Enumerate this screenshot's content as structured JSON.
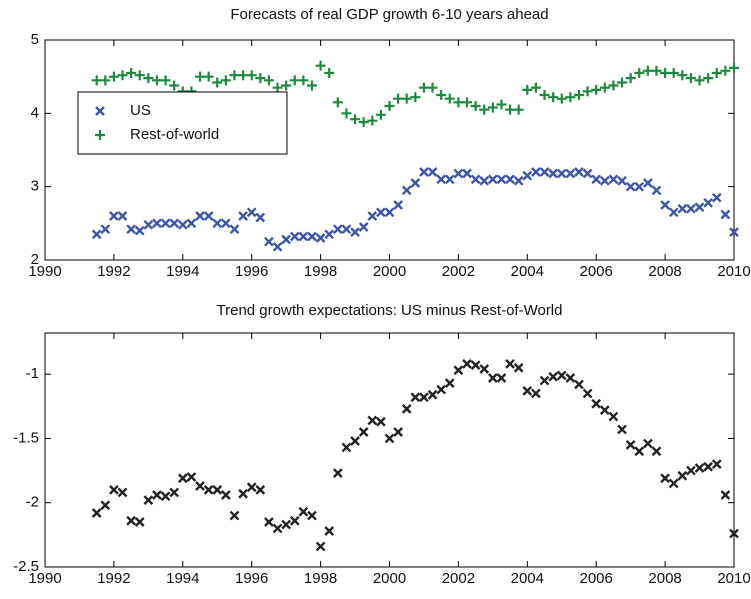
{
  "chart_data": [
    {
      "type": "scatter",
      "title": "Forecasts of real GDP growth 6-10 years ahead",
      "x": [
        1991.5,
        1991.75,
        1992,
        1992.25,
        1992.5,
        1992.75,
        1993,
        1993.25,
        1993.5,
        1993.75,
        1994,
        1994.25,
        1994.5,
        1994.75,
        1995,
        1995.25,
        1995.5,
        1995.75,
        1996,
        1996.25,
        1996.5,
        1996.75,
        1997,
        1997.25,
        1997.5,
        1997.75,
        1998,
        1998.25,
        1998.5,
        1998.75,
        1999,
        1999.25,
        1999.5,
        1999.75,
        2000,
        2000.25,
        2000.5,
        2000.75,
        2001,
        2001.25,
        2001.5,
        2001.75,
        2002,
        2002.25,
        2002.5,
        2002.75,
        2003,
        2003.25,
        2003.5,
        2003.75,
        2004,
        2004.25,
        2004.5,
        2004.75,
        2005,
        2005.25,
        2005.5,
        2005.75,
        2006,
        2006.25,
        2006.5,
        2006.75,
        2007,
        2007.25,
        2007.5,
        2007.75,
        2008,
        2008.25,
        2008.5,
        2008.75,
        2009,
        2009.25,
        2009.5,
        2009.75,
        2010
      ],
      "series": [
        {
          "name": "US",
          "color": "#3b56a8",
          "marker": "x",
          "values": [
            2.35,
            2.42,
            2.6,
            2.6,
            2.42,
            2.4,
            2.48,
            2.5,
            2.5,
            2.5,
            2.48,
            2.5,
            2.6,
            2.6,
            2.5,
            2.5,
            2.42,
            2.6,
            2.65,
            2.58,
            2.25,
            2.18,
            2.28,
            2.32,
            2.32,
            2.32,
            2.3,
            2.35,
            2.42,
            2.42,
            2.38,
            2.45,
            2.6,
            2.65,
            2.65,
            2.75,
            2.95,
            3.05,
            3.2,
            3.2,
            3.1,
            3.1,
            3.18,
            3.18,
            3.1,
            3.08,
            3.1,
            3.1,
            3.1,
            3.08,
            3.15,
            3.2,
            3.2,
            3.18,
            3.18,
            3.18,
            3.2,
            3.18,
            3.1,
            3.08,
            3.1,
            3.08,
            3.0,
            3.0,
            3.05,
            2.95,
            2.75,
            2.65,
            2.7,
            2.7,
            2.72,
            2.78,
            2.85,
            2.62,
            2.38
          ]
        },
        {
          "name": "Rest-of-world",
          "color": "#1c8a3d",
          "marker": "+",
          "values": [
            4.45,
            4.45,
            4.5,
            4.52,
            4.55,
            4.52,
            4.48,
            4.45,
            4.45,
            4.38,
            4.3,
            4.3,
            4.5,
            4.5,
            4.42,
            4.45,
            4.52,
            4.52,
            4.52,
            4.48,
            4.45,
            4.35,
            4.38,
            4.45,
            4.45,
            4.38,
            4.65,
            4.55,
            4.15,
            4.0,
            3.92,
            3.88,
            3.9,
            3.98,
            4.1,
            4.2,
            4.2,
            4.22,
            4.35,
            4.35,
            4.25,
            4.2,
            4.15,
            4.15,
            4.1,
            4.05,
            4.08,
            4.12,
            4.05,
            4.05,
            4.32,
            4.35,
            4.25,
            4.22,
            4.2,
            4.22,
            4.25,
            4.3,
            4.32,
            4.35,
            4.38,
            4.42,
            4.48,
            4.55,
            4.58,
            4.58,
            4.55,
            4.55,
            4.52,
            4.48,
            4.45,
            4.48,
            4.55,
            4.58,
            4.62
          ]
        }
      ],
      "xlim": [
        1990,
        2010
      ],
      "xticks": [
        1990,
        1992,
        1994,
        1996,
        1998,
        2000,
        2002,
        2004,
        2006,
        2008,
        2010
      ],
      "ylim": [
        2,
        5
      ],
      "yticks": [
        2,
        3,
        4,
        5
      ],
      "grid": false,
      "legend": "center left"
    },
    {
      "type": "scatter",
      "title": "Trend growth expectations: US minus Rest-of-World",
      "x": [
        1991.5,
        1991.75,
        1992,
        1992.25,
        1992.5,
        1992.75,
        1993,
        1993.25,
        1993.5,
        1993.75,
        1994,
        1994.25,
        1994.5,
        1994.75,
        1995,
        1995.25,
        1995.5,
        1995.75,
        1996,
        1996.25,
        1996.5,
        1996.75,
        1997,
        1997.25,
        1997.5,
        1997.75,
        1998,
        1998.25,
        1998.5,
        1998.75,
        1999,
        1999.25,
        1999.5,
        1999.75,
        2000,
        2000.25,
        2000.5,
        2000.75,
        2001,
        2001.25,
        2001.5,
        2001.75,
        2002,
        2002.25,
        2002.5,
        2002.75,
        2003,
        2003.25,
        2003.5,
        2003.75,
        2004,
        2004.25,
        2004.5,
        2004.75,
        2005,
        2005.25,
        2005.5,
        2005.75,
        2006,
        2006.25,
        2006.5,
        2006.75,
        2007,
        2007.25,
        2007.5,
        2007.75,
        2008,
        2008.25,
        2008.5,
        2008.75,
        2009,
        2009.25,
        2009.5,
        2009.75,
        2010
      ],
      "series": [
        {
          "color": "#222222",
          "marker": "x",
          "values": [
            -2.08,
            -2.02,
            -1.9,
            -1.92,
            -2.14,
            -2.15,
            -1.98,
            -1.94,
            -1.95,
            -1.92,
            -1.81,
            -1.8,
            -1.87,
            -1.9,
            -1.9,
            -1.94,
            -2.1,
            -1.93,
            -1.88,
            -1.9,
            -2.15,
            -2.2,
            -2.17,
            -2.14,
            -2.07,
            -2.1,
            -2.34,
            -2.22,
            -1.77,
            -1.57,
            -1.52,
            -1.45,
            -1.36,
            -1.37,
            -1.5,
            -1.45,
            -1.27,
            -1.18,
            -1.18,
            -1.16,
            -1.12,
            -1.07,
            -0.97,
            -0.92,
            -0.93,
            -0.96,
            -1.03,
            -1.03,
            -0.92,
            -0.95,
            -1.13,
            -1.15,
            -1.05,
            -1.02,
            -1.01,
            -1.03,
            -1.08,
            -1.15,
            -1.23,
            -1.28,
            -1.33,
            -1.43,
            -1.55,
            -1.6,
            -1.54,
            -1.6,
            -1.81,
            -1.85,
            -1.79,
            -1.75,
            -1.73,
            -1.72,
            -1.7,
            -1.94,
            -2.24
          ]
        }
      ],
      "xlim": [
        1990,
        2010
      ],
      "xticks": [
        1990,
        1992,
        1994,
        1996,
        1998,
        2000,
        2002,
        2004,
        2006,
        2008,
        2010
      ],
      "ylim": [
        -2.5,
        -0.68
      ],
      "yticks": [
        -2.5,
        -2,
        -1.5,
        -1
      ],
      "grid": false
    }
  ]
}
